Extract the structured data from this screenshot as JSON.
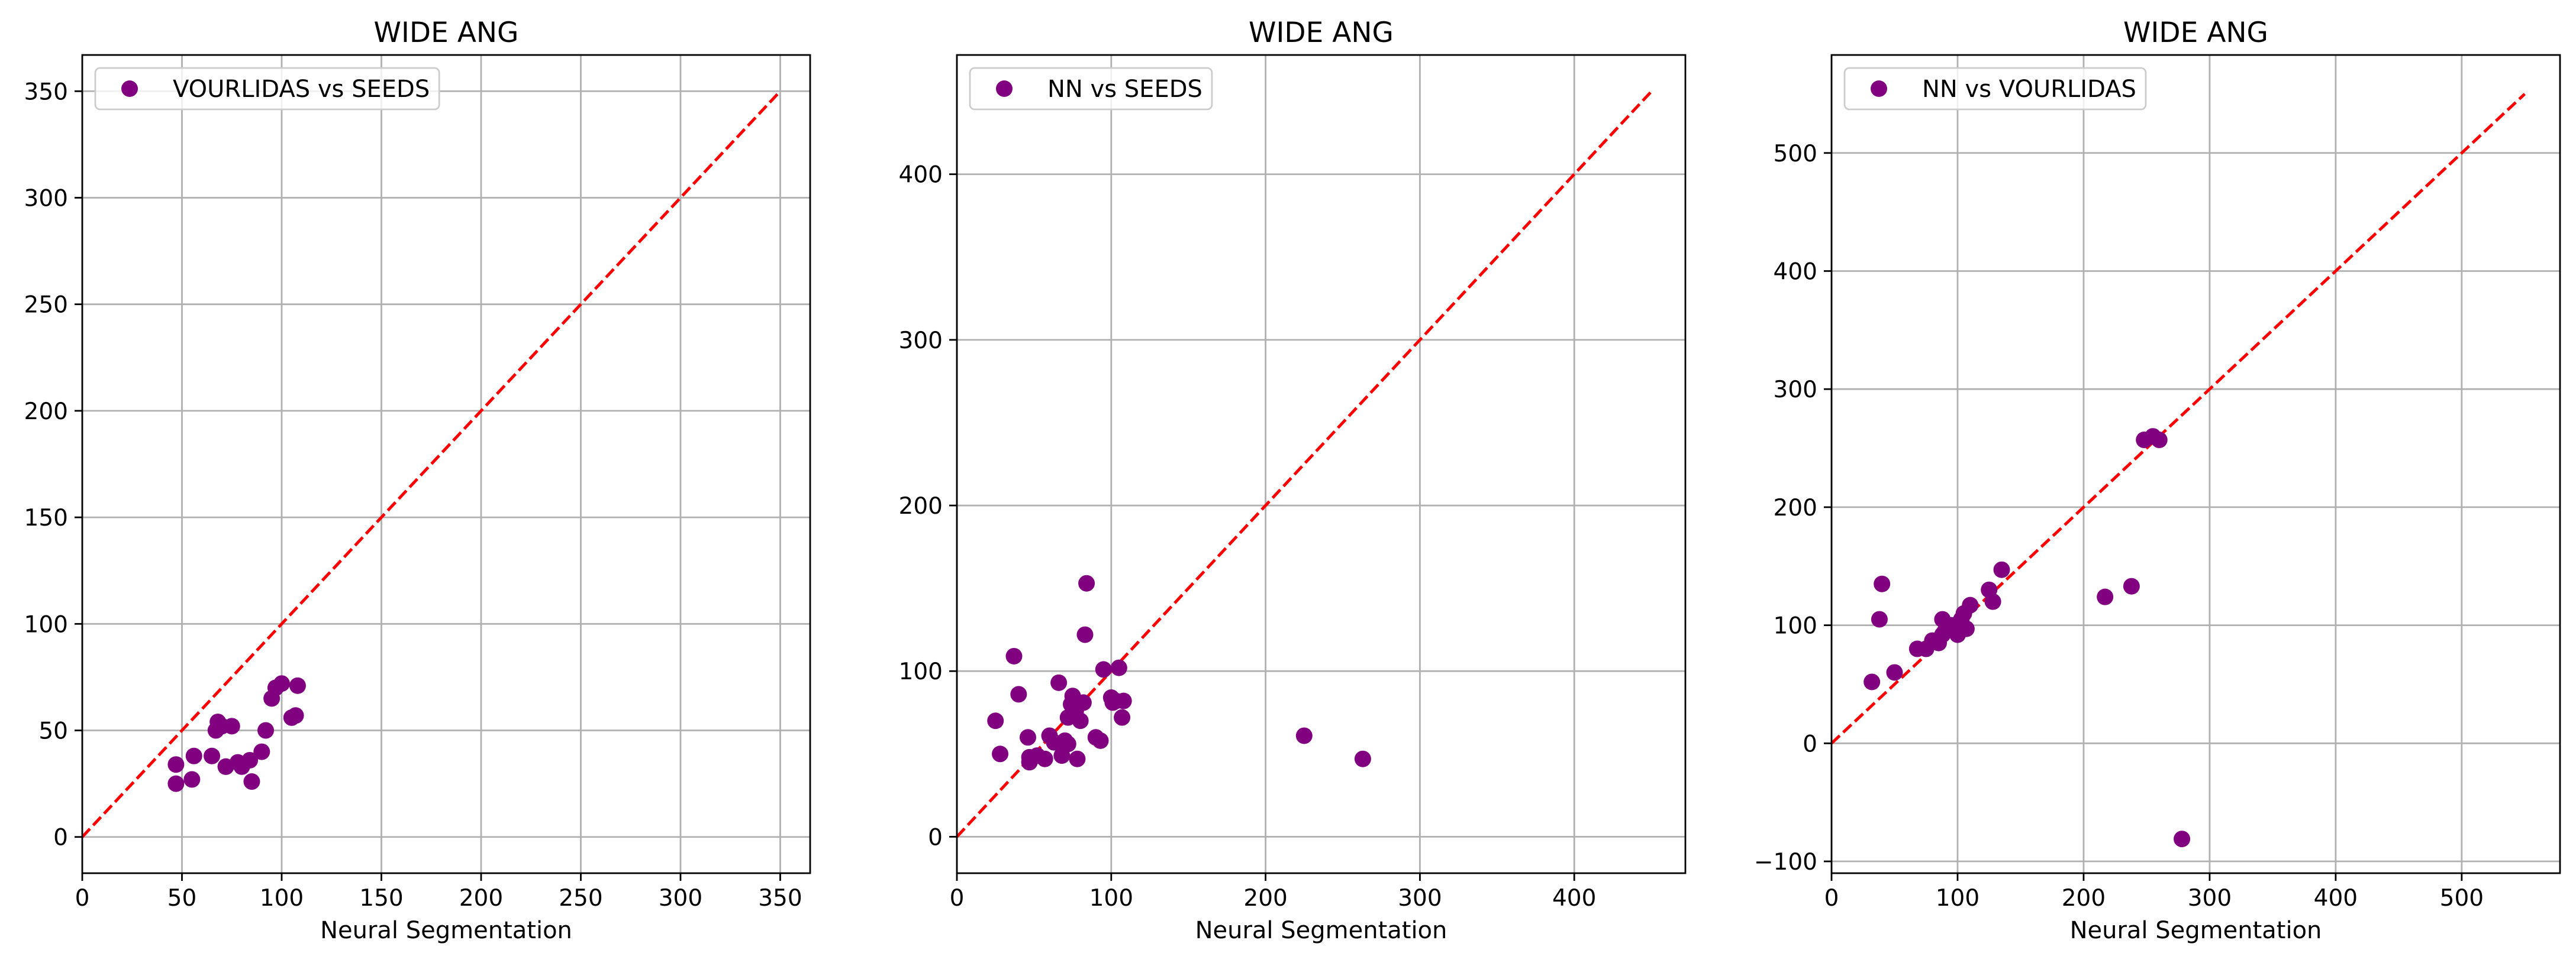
{
  "chart_data": [
    {
      "type": "scatter",
      "title": "WIDE ANG",
      "xlabel": "Neural Segmentation",
      "ylabel": "",
      "xlim": [
        0,
        365
      ],
      "ylim": [
        -17,
        367
      ],
      "xticks": [
        0,
        50,
        100,
        150,
        200,
        250,
        300,
        350
      ],
      "yticks": [
        0,
        50,
        100,
        150,
        200,
        250,
        300,
        350
      ],
      "grid": true,
      "legend_position": "upper-left",
      "series": [
        {
          "name": "VOURLIDAS vs SEEDS",
          "color": "#800080",
          "marker": "circle",
          "x": [
            47,
            47,
            56,
            55,
            65,
            68,
            67,
            70,
            75,
            72,
            78,
            80,
            84,
            85,
            90,
            92,
            95,
            97,
            100,
            105,
            107,
            108,
            72
          ],
          "y": [
            34,
            25,
            38,
            27,
            38,
            54,
            50,
            52,
            52,
            33,
            35,
            33,
            36,
            26,
            40,
            50,
            65,
            70,
            72,
            56,
            57,
            71,
            33
          ]
        },
        {
          "name": "",
          "color": "#ff0000",
          "style": "dashed",
          "x": [
            0,
            350
          ],
          "y": [
            0,
            350
          ]
        }
      ]
    },
    {
      "type": "scatter",
      "title": "WIDE ANG",
      "xlabel": "Neural Segmentation",
      "ylabel": "",
      "xlim": [
        0,
        472
      ],
      "ylim": [
        -22,
        472
      ],
      "xticks": [
        0,
        100,
        200,
        300,
        400
      ],
      "yticks": [
        0,
        100,
        200,
        300,
        400
      ],
      "grid": true,
      "legend_position": "upper-left",
      "series": [
        {
          "name": "NN vs SEEDS",
          "color": "#800080",
          "marker": "circle",
          "x": [
            25,
            28,
            37,
            40,
            46,
            47,
            47,
            52,
            57,
            60,
            63,
            66,
            68,
            70,
            72,
            72,
            74,
            75,
            77,
            78,
            80,
            82,
            83,
            84,
            90,
            93,
            95,
            100,
            101,
            103,
            105,
            107,
            108,
            225,
            263
          ],
          "y": [
            70,
            50,
            109,
            86,
            60,
            45,
            48,
            49,
            47,
            61,
            57,
            93,
            49,
            58,
            72,
            56,
            80,
            85,
            76,
            47,
            70,
            81,
            122,
            153,
            60,
            58,
            101,
            84,
            81,
            82,
            102,
            72,
            82,
            61,
            47
          ]
        },
        {
          "name": "",
          "color": "#ff0000",
          "style": "dashed",
          "x": [
            0,
            450
          ],
          "y": [
            0,
            450
          ]
        }
      ]
    },
    {
      "type": "scatter",
      "title": "WIDE ANG",
      "xlabel": "Neural Segmentation",
      "ylabel": "",
      "xlim": [
        0,
        578
      ],
      "ylim": [
        -110,
        583
      ],
      "xticks": [
        0,
        100,
        200,
        300,
        400,
        500
      ],
      "yticks": [
        -100,
        0,
        100,
        200,
        300,
        400,
        500
      ],
      "grid": true,
      "legend_position": "upper-left",
      "series": [
        {
          "name": "NN vs VOURLIDAS",
          "color": "#800080",
          "marker": "circle",
          "x": [
            32,
            38,
            40,
            50,
            68,
            75,
            80,
            85,
            88,
            88,
            90,
            95,
            100,
            103,
            105,
            107,
            110,
            125,
            128,
            135,
            217,
            238,
            248,
            255,
            260,
            278
          ],
          "y": [
            52,
            105,
            135,
            60,
            80,
            80,
            87,
            85,
            92,
            105,
            95,
            100,
            92,
            105,
            110,
            97,
            117,
            130,
            120,
            147,
            124,
            133,
            257,
            260,
            257,
            -81
          ]
        },
        {
          "name": "",
          "color": "#ff0000",
          "style": "dashed",
          "x": [
            0,
            550
          ],
          "y": [
            0,
            550
          ]
        }
      ]
    }
  ]
}
